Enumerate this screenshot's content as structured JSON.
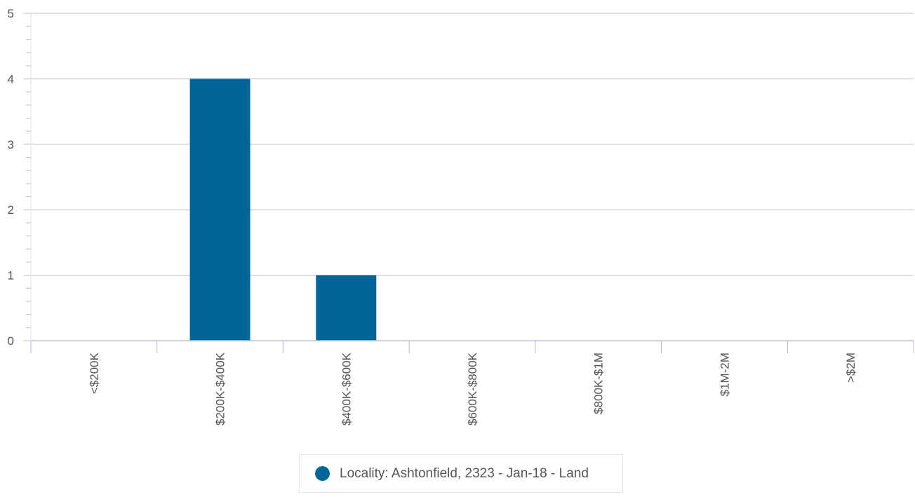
{
  "chart_data": {
    "type": "bar",
    "categories": [
      "<$200K",
      "$200K-$400K",
      "$400K-$600K",
      "$600K-$800K",
      "$800K-$1M",
      "$1M-2M",
      ">$2M"
    ],
    "series": [
      {
        "name": "Locality: Ashtonfield, 2323 - Jan-18 - Land",
        "values": [
          0,
          4,
          1,
          0,
          0,
          0,
          0
        ]
      }
    ],
    "ylim": [
      0,
      5
    ],
    "y_ticks": [
      "0",
      "1",
      "2",
      "3",
      "4",
      "5"
    ],
    "grid": true,
    "legend_position": "bottom-center"
  },
  "colors": {
    "bar": "#006699",
    "grid": "#cccccc",
    "axis": "#c0c0d8",
    "text": "#555555"
  }
}
